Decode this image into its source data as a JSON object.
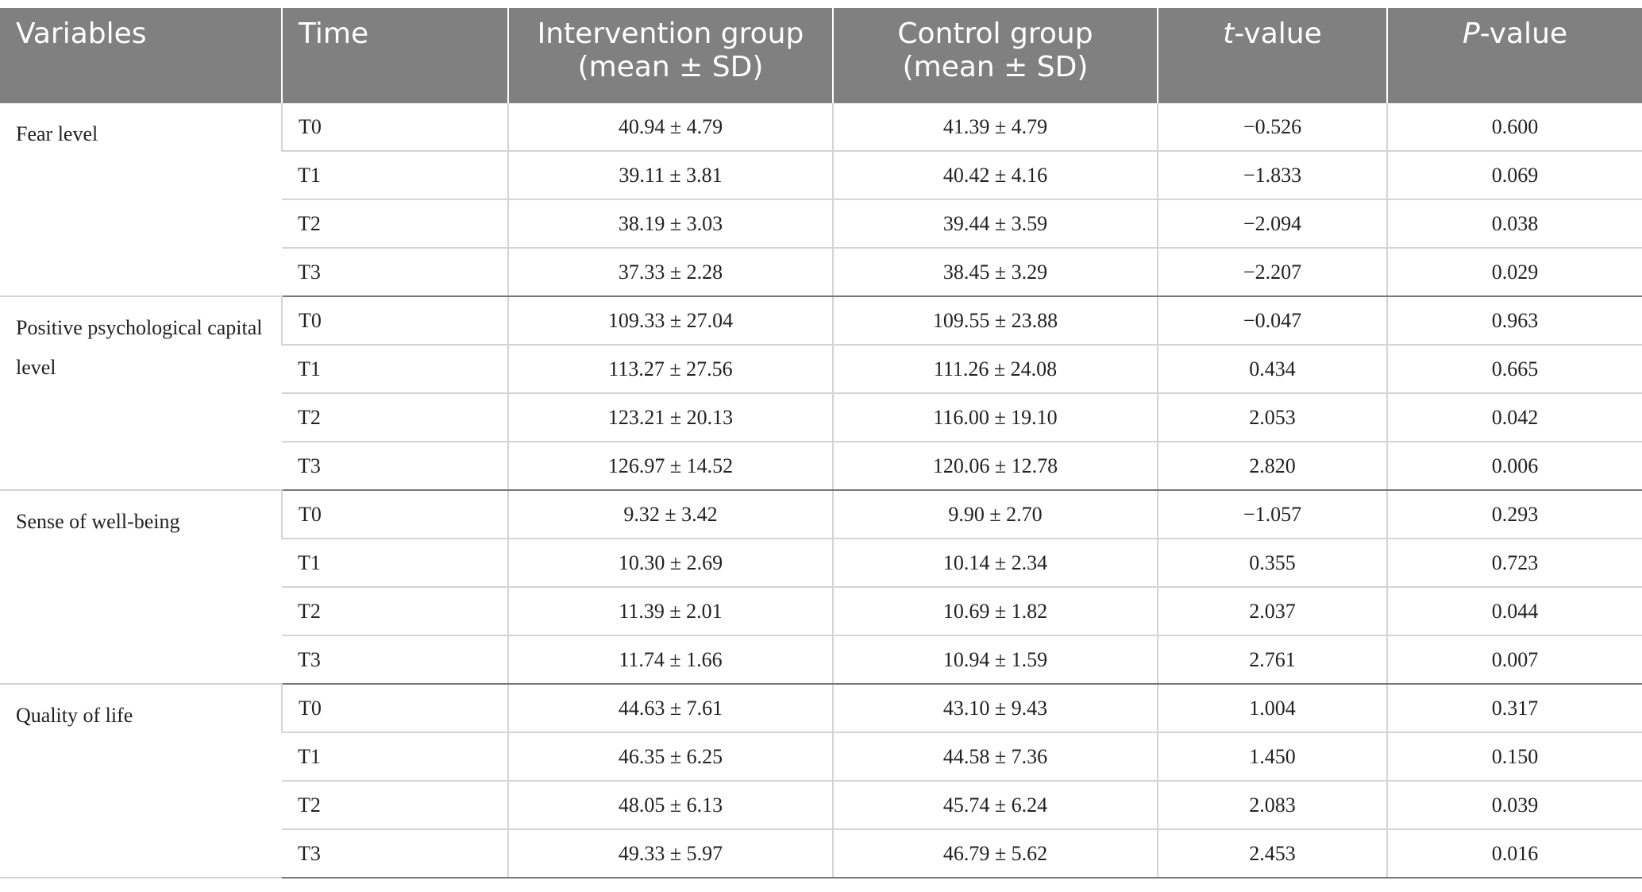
{
  "header": {
    "variables": "Variables",
    "time": "Time",
    "intervention_line1": "Intervention group",
    "intervention_line2": "(mean ± SD)",
    "control_line1": "Control group",
    "control_line2": "(mean ± SD)",
    "t_italic": "t",
    "t_rest": "-value",
    "p_italic": "P",
    "p_rest": "-value"
  },
  "groups": [
    {
      "variable": "Fear level",
      "rows": [
        {
          "time": "T0",
          "intervention": "40.94 ± 4.79",
          "control": "41.39 ± 4.79",
          "t": "−0.526",
          "p": "0.600"
        },
        {
          "time": "T1",
          "intervention": "39.11 ± 3.81",
          "control": "40.42 ± 4.16",
          "t": "−1.833",
          "p": "0.069"
        },
        {
          "time": "T2",
          "intervention": "38.19 ± 3.03",
          "control": "39.44 ± 3.59",
          "t": "−2.094",
          "p": "0.038"
        },
        {
          "time": "T3",
          "intervention": "37.33 ± 2.28",
          "control": "38.45 ± 3.29",
          "t": "−2.207",
          "p": "0.029"
        }
      ]
    },
    {
      "variable": "Positive psychological capital level",
      "rows": [
        {
          "time": "T0",
          "intervention": "109.33 ± 27.04",
          "control": "109.55 ± 23.88",
          "t": "−0.047",
          "p": "0.963"
        },
        {
          "time": "T1",
          "intervention": "113.27 ± 27.56",
          "control": "111.26 ± 24.08",
          "t": "0.434",
          "p": "0.665"
        },
        {
          "time": "T2",
          "intervention": "123.21 ± 20.13",
          "control": "116.00 ± 19.10",
          "t": "2.053",
          "p": "0.042"
        },
        {
          "time": "T3",
          "intervention": "126.97 ± 14.52",
          "control": "120.06 ± 12.78",
          "t": "2.820",
          "p": "0.006"
        }
      ]
    },
    {
      "variable": "Sense of well-being",
      "rows": [
        {
          "time": "T0",
          "intervention": "9.32 ± 3.42",
          "control": "9.90 ± 2.70",
          "t": "−1.057",
          "p": "0.293"
        },
        {
          "time": "T1",
          "intervention": "10.30 ± 2.69",
          "control": "10.14 ± 2.34",
          "t": "0.355",
          "p": "0.723"
        },
        {
          "time": "T2",
          "intervention": "11.39 ± 2.01",
          "control": "10.69 ± 1.82",
          "t": "2.037",
          "p": "0.044"
        },
        {
          "time": "T3",
          "intervention": "11.74 ± 1.66",
          "control": "10.94 ± 1.59",
          "t": "2.761",
          "p": "0.007"
        }
      ]
    },
    {
      "variable": "Quality of life",
      "rows": [
        {
          "time": "T0",
          "intervention": "44.63 ± 7.61",
          "control": "43.10 ± 9.43",
          "t": "1.004",
          "p": "0.317"
        },
        {
          "time": "T1",
          "intervention": "46.35 ± 6.25",
          "control": "44.58 ± 7.36",
          "t": "1.450",
          "p": "0.150"
        },
        {
          "time": "T2",
          "intervention": "48.05 ± 6.13",
          "control": "45.74 ± 6.24",
          "t": "2.083",
          "p": "0.039"
        },
        {
          "time": "T3",
          "intervention": "49.33 ± 5.97",
          "control": "46.79 ± 5.62",
          "t": "2.453",
          "p": "0.016"
        }
      ]
    }
  ]
}
